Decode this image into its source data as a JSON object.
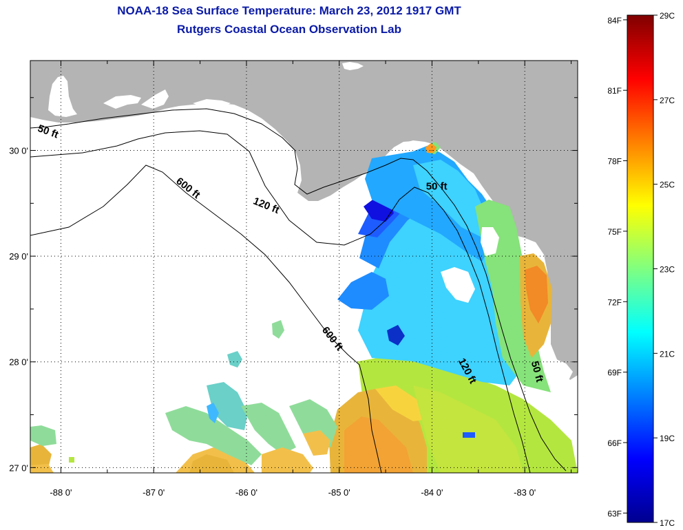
{
  "header": {
    "title": "NOAA-18 Sea Surface Temperature:  March 23, 2012 1917 GMT",
    "subtitle": "Rutgers Coastal Ocean Observation Lab"
  },
  "map": {
    "lat_range": [
      26.95,
      30.85
    ],
    "lon_range": [
      -88.33,
      -82.43
    ],
    "lat_ticks": [
      {
        "value": 27,
        "label": "27 0'"
      },
      {
        "value": 28,
        "label": "28 0'"
      },
      {
        "value": 29,
        "label": "29 0'"
      },
      {
        "value": 30,
        "label": "30 0'"
      }
    ],
    "lon_ticks": [
      {
        "value": -88,
        "label": "-88 0'"
      },
      {
        "value": -87,
        "label": "-87 0'"
      },
      {
        "value": -86,
        "label": "-86 0'"
      },
      {
        "value": -85,
        "label": "-85 0'"
      },
      {
        "value": -84,
        "label": "-84 0'"
      },
      {
        "value": -83,
        "label": "-83 0'"
      }
    ],
    "grid": "dotted",
    "land_color": "#b4b4b4",
    "no_data_color": "#ffffff",
    "isobaths": [
      {
        "label": "50 ft",
        "lat": 30.15,
        "lon": -88.15
      },
      {
        "label": "120 ft",
        "lat": 29.45,
        "lon": -85.8
      },
      {
        "label": "600 ft",
        "lat": 29.62,
        "lon": -86.65
      },
      {
        "label": "50 ft",
        "lat": 29.63,
        "lon": -83.95
      },
      {
        "label": "600 ft",
        "lat": 28.2,
        "lon": -85.1
      },
      {
        "label": "120 ft",
        "lat": 27.9,
        "lon": -83.65
      },
      {
        "label": "50 ft",
        "lat": 27.9,
        "lon": -82.9
      }
    ]
  },
  "colorbar": {
    "colors": [
      "#00008f",
      "#0000ff",
      "#0080ff",
      "#00ffff",
      "#80ff80",
      "#ffff00",
      "#ff8000",
      "#ff0000",
      "#800000"
    ],
    "fahrenheit_labels": [
      {
        "value": 84,
        "label": "84F"
      },
      {
        "value": 81,
        "label": "81F"
      },
      {
        "value": 78,
        "label": "78F"
      },
      {
        "value": 75,
        "label": "75F"
      },
      {
        "value": 72,
        "label": "72F"
      },
      {
        "value": 69,
        "label": "69F"
      },
      {
        "value": 66,
        "label": "66F"
      },
      {
        "value": 63,
        "label": "63F"
      }
    ],
    "celsius_labels": [
      {
        "value": 29,
        "label": "29C"
      },
      {
        "value": 27,
        "label": "27C"
      },
      {
        "value": 25,
        "label": "25C"
      },
      {
        "value": 23,
        "label": "23C"
      },
      {
        "value": 21,
        "label": "21C"
      },
      {
        "value": 19,
        "label": "19C"
      },
      {
        "value": 17,
        "label": "17C"
      }
    ],
    "min_c": 17,
    "max_c": 29
  }
}
